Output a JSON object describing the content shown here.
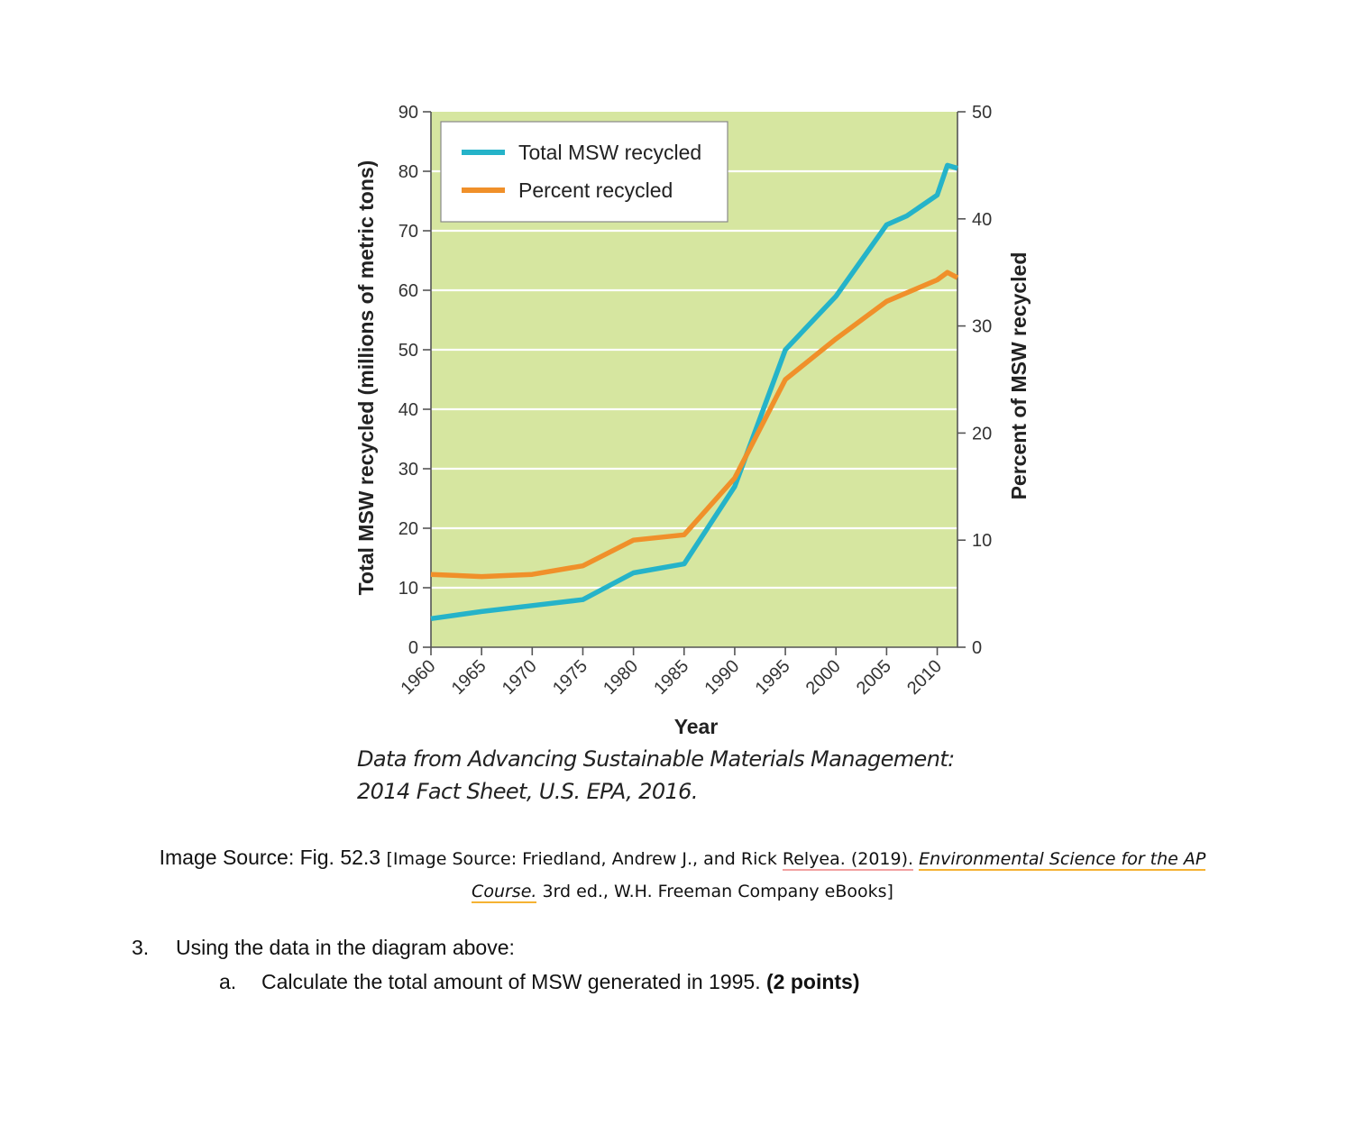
{
  "chart_data": {
    "type": "line",
    "title": "",
    "xlabel": "Year",
    "ylabel": "Total MSW recycled (millions of metric tons)",
    "y2label": "Percent of MSW recycled",
    "xlim": [
      1960,
      2012
    ],
    "ylim": [
      0,
      90
    ],
    "y2lim": [
      0,
      50
    ],
    "x_ticks": [
      "1960",
      "1965",
      "1970",
      "1975",
      "1980",
      "1985",
      "1990",
      "1995",
      "2000",
      "2005",
      "2010"
    ],
    "y_ticks": [
      "0",
      "10",
      "20",
      "30",
      "40",
      "50",
      "60",
      "70",
      "80",
      "90"
    ],
    "y2_ticks": [
      "0",
      "10",
      "20",
      "30",
      "40",
      "50"
    ],
    "grid": "horizontal",
    "legend": "top-left",
    "series": [
      {
        "name": "Total MSW recycled",
        "axis": "left",
        "color": "#25b3c9",
        "x": [
          1960,
          1965,
          1970,
          1975,
          1980,
          1985,
          1990,
          1995,
          2000,
          2005,
          2007,
          2010,
          2011,
          2012
        ],
        "values": [
          4.8,
          6.0,
          7.0,
          8.0,
          12.5,
          14.0,
          27.0,
          50.0,
          59.0,
          71.0,
          72.5,
          76.0,
          81.0,
          80.5
        ]
      },
      {
        "name": "Percent recycled",
        "axis": "right",
        "color": "#f0902a",
        "x": [
          1960,
          1965,
          1970,
          1975,
          1980,
          1985,
          1990,
          1995,
          2000,
          2005,
          2008,
          2010,
          2011,
          2012
        ],
        "values": [
          6.8,
          6.6,
          6.8,
          7.6,
          10.0,
          10.5,
          15.8,
          25.0,
          28.8,
          32.3,
          33.5,
          34.3,
          35.0,
          34.5
        ]
      }
    ],
    "colors": {
      "plot_bg": "#d6e6a0",
      "grid": "#ffffff",
      "axis": "#555555"
    }
  },
  "caption": {
    "line1": "Data from Advancing Sustainable Materials Management:",
    "line2": "2014 Fact Sheet, U.S. EPA, 2016."
  },
  "source": {
    "prefix": "Image Source: Fig. 52.3 ",
    "bracket_open": "[Image Source: Friedland, Andrew J., and Rick ",
    "author": "Relyea. (2019).",
    "space": " ",
    "book_title_1": "Environmental Science for the AP",
    "book_title_2": "Course.",
    "rest": " 3rd ed., W.H. Freeman Company eBooks]"
  },
  "question": {
    "number": "3.",
    "prompt": "Using the data in the diagram above:",
    "sub_letter": "a.",
    "sub_text": "Calculate the total amount of MSW generated in 1995. ",
    "points": "(2 points)"
  }
}
